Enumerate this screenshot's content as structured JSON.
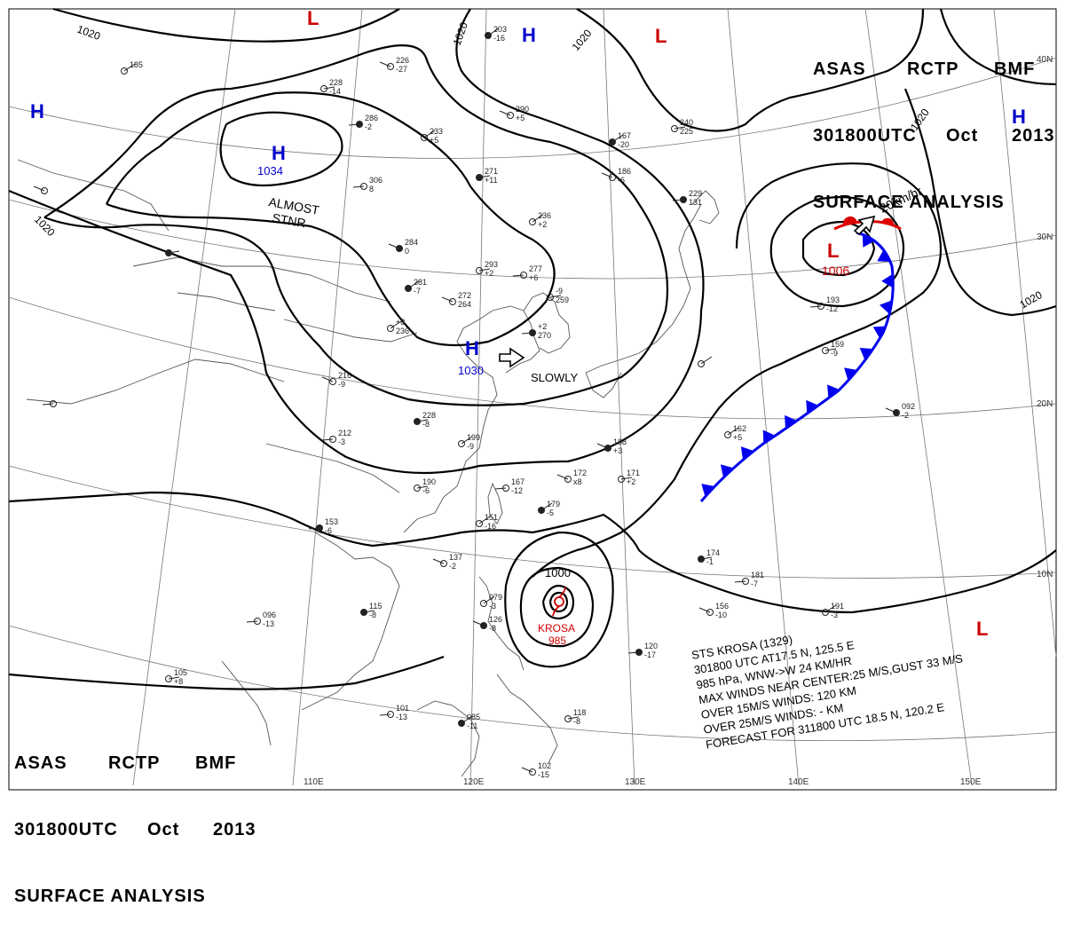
{
  "header": {
    "line1": [
      "ASAS",
      "RCTP",
      "BMF"
    ],
    "line2": [
      "301800UTC",
      "Oct",
      "2013"
    ],
    "line3": "SURFACE ANALYSIS"
  },
  "pressure_centers": [
    {
      "type": "H",
      "value": "1034",
      "color": "#0000cc"
    },
    {
      "type": "H",
      "value": "1030",
      "color": "#0000cc"
    },
    {
      "type": "H",
      "value": "",
      "color": "#0000cc"
    },
    {
      "type": "H",
      "value": "",
      "color": "#0000cc"
    },
    {
      "type": "H",
      "value": "",
      "color": "#0000cc"
    },
    {
      "type": "L",
      "value": "1006",
      "color": "#cc0000"
    },
    {
      "type": "L",
      "value": "",
      "color": "#cc0000"
    },
    {
      "type": "L",
      "value": "",
      "color": "#cc0000"
    },
    {
      "type": "L",
      "value": "",
      "color": "#cc0000"
    }
  ],
  "isobar_labels": [
    "1020",
    "1020",
    "1020",
    "1020",
    "1020",
    "1020",
    "1000"
  ],
  "annotations": {
    "almost": "ALMOST",
    "stnr": "STNR",
    "slowly": "SLOWLY",
    "speed": "20km/hr",
    "typhoon_name": "KROSA",
    "typhoon_pressure": "985"
  },
  "storm_info": [
    "STS  KROSA  (1329)",
    "301800 UTC  AT17.5 N, 125.5 E",
    "985 hPa, WNW->W  24 KM/HR",
    "MAX WINDS NEAR CENTER:25 M/S,GUST 33 M/S",
    "OVER 15M/S WINDS: 120 KM",
    "OVER 25M/S WINDS: - KM",
    "FORECAST FOR 311800 UTC 18.5 N, 120.2 E"
  ],
  "longitude_labels": [
    "110E",
    "120E",
    "130E",
    "140E",
    "150E"
  ],
  "latitude_labels": [
    "40N",
    "30N",
    "20N",
    "10N"
  ],
  "station_values": [
    "203",
    "-16",
    "226",
    "-27",
    "228",
    "-14",
    "286",
    "-2",
    "233",
    "+5",
    "290",
    "+5",
    "271",
    "+11",
    "306",
    "8",
    "236",
    "+2",
    "284",
    "0",
    "293",
    "+2",
    "277",
    "+6",
    "281",
    "-7",
    "272",
    "264",
    "-9",
    "259",
    "+2",
    "270",
    "+8",
    "236",
    "216",
    "-9",
    "228",
    "-8",
    "212",
    "-3",
    "199",
    "-9",
    "188",
    "+3",
    "190",
    "-6",
    "167",
    "-12",
    "179",
    "-5",
    "172",
    "x8",
    "171",
    "+2",
    "153",
    "-6",
    "151",
    "-16",
    "137",
    "-2",
    "115",
    "-8",
    "096",
    "-13",
    "079",
    "-3",
    "126",
    "-8",
    "105",
    "+8",
    "101",
    "-13",
    "085",
    "-11",
    "102",
    "-15",
    "118",
    "-8",
    "120",
    "-17",
    "191",
    "-3",
    "156",
    "-10",
    "174",
    "-1",
    "181",
    "-7",
    "162",
    "+5",
    "092",
    "-2",
    "159",
    "-9",
    "193",
    "-12",
    "167",
    "-20",
    "186",
    "-6",
    "240",
    "225",
    "229",
    "131",
    "185"
  ]
}
